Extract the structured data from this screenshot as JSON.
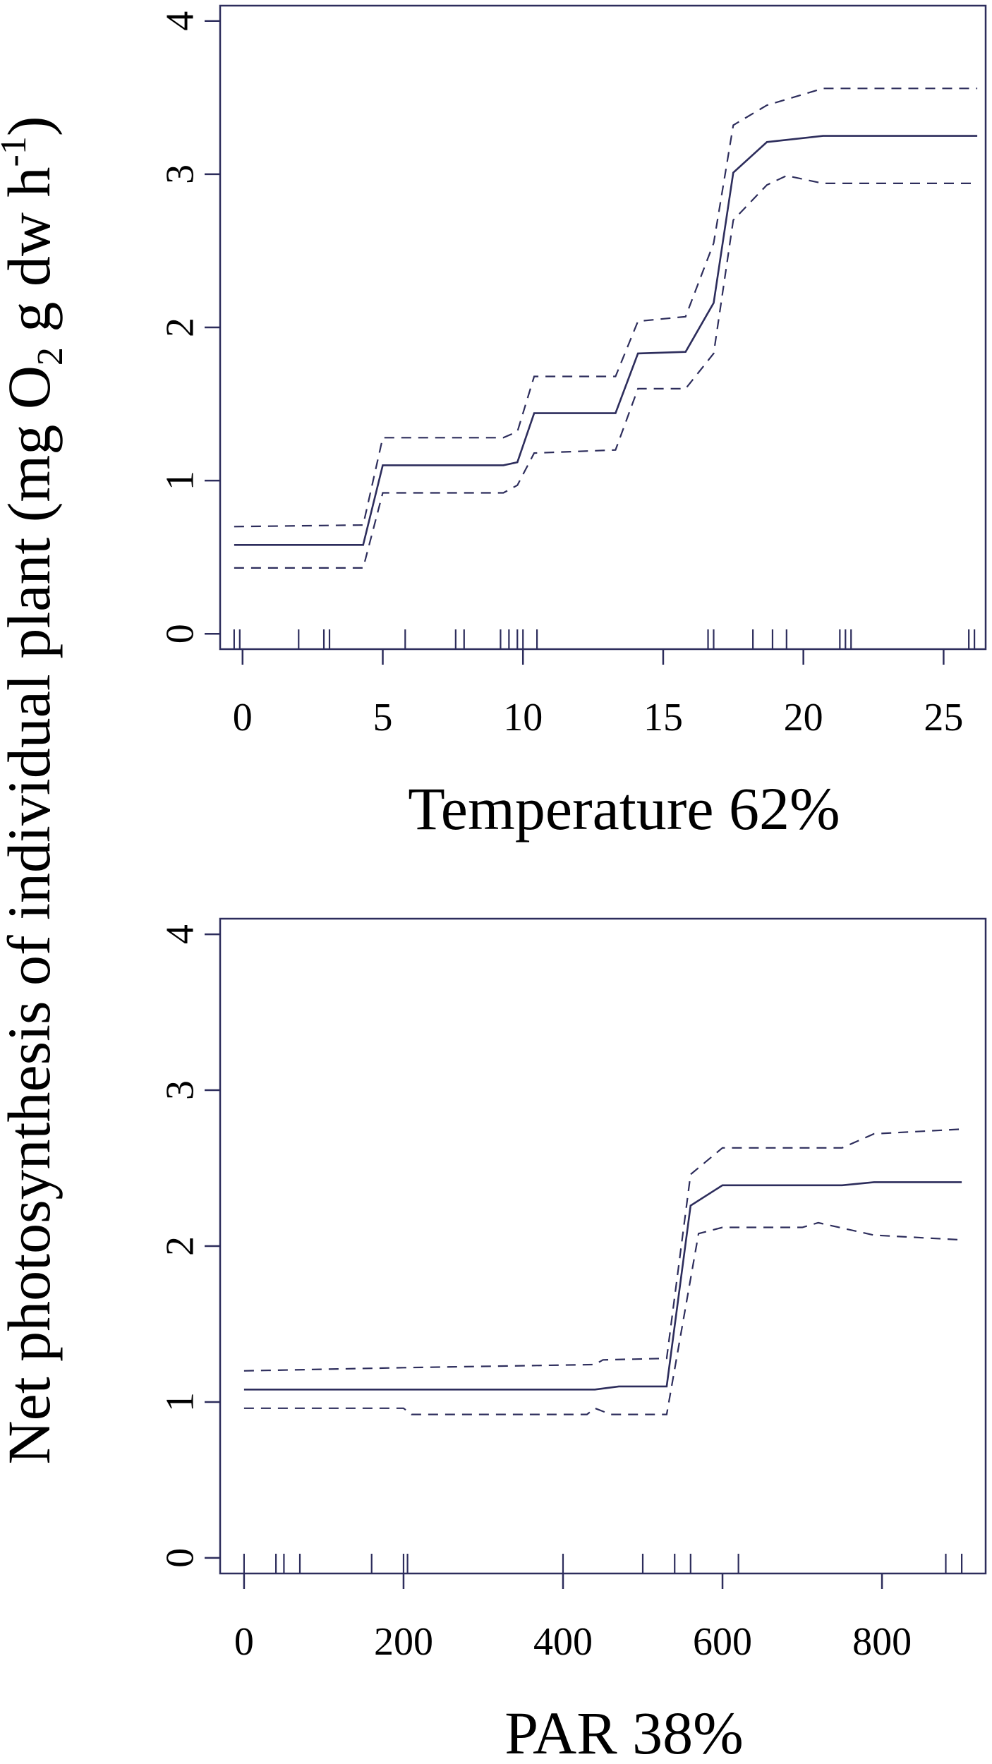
{
  "figure": {
    "shared_ylabel": {
      "prefix": "Net photosynthesis of individual plant (mg O",
      "sub": "2",
      "mid": " g dw h",
      "sup": "-1",
      "suffix": ")"
    }
  },
  "chart_data": [
    {
      "type": "line",
      "title": "",
      "xlabel": "Temperature 62%",
      "ylabel": "",
      "xlim": [
        -0.8,
        26.5
      ],
      "ylim": [
        -0.1,
        4.1
      ],
      "x_ticks": [
        0,
        5,
        10,
        15,
        20,
        25
      ],
      "y_ticks": [
        0,
        1,
        2,
        3,
        4
      ],
      "grid": false,
      "series": [
        {
          "role": "fit",
          "style": "solid",
          "x": [
            -0.3,
            4.3,
            5.0,
            9.3,
            9.8,
            10.4,
            13.3,
            14.1,
            15.8,
            16.8,
            17.5,
            18.7,
            20.7,
            26.2
          ],
          "y": [
            0.58,
            0.58,
            1.1,
            1.1,
            1.12,
            1.44,
            1.44,
            1.83,
            1.84,
            2.16,
            3.01,
            3.21,
            3.25,
            3.25
          ]
        },
        {
          "role": "upper-bound",
          "style": "dashed",
          "x": [
            -0.3,
            4.3,
            5.0,
            9.3,
            9.8,
            10.4,
            13.3,
            14.1,
            15.8,
            16.8,
            17.5,
            18.7,
            20.7,
            26.2
          ],
          "y": [
            0.7,
            0.71,
            1.28,
            1.28,
            1.32,
            1.68,
            1.68,
            2.04,
            2.07,
            2.55,
            3.32,
            3.45,
            3.56,
            3.56
          ]
        },
        {
          "role": "lower-bound",
          "style": "dashed",
          "x": [
            -0.3,
            4.3,
            5.0,
            9.3,
            9.8,
            10.4,
            13.3,
            14.1,
            15.8,
            16.8,
            17.5,
            18.7,
            19.4,
            20.7,
            26.2
          ],
          "y": [
            0.43,
            0.43,
            0.92,
            0.92,
            0.97,
            1.18,
            1.2,
            1.6,
            1.6,
            1.83,
            2.7,
            2.93,
            2.99,
            2.94,
            2.94
          ]
        }
      ],
      "rug": [
        -0.3,
        -0.1,
        2.0,
        2.9,
        3.1,
        5.8,
        7.6,
        7.9,
        9.2,
        9.5,
        9.8,
        10.0,
        10.5,
        16.6,
        16.8,
        18.2,
        18.9,
        19.4,
        21.3,
        21.5,
        21.7,
        25.9,
        26.1
      ]
    },
    {
      "type": "line",
      "title": "",
      "xlabel": "PAR 38%",
      "ylabel": "",
      "xlim": [
        -30,
        930
      ],
      "ylim": [
        -0.1,
        4.1
      ],
      "x_ticks": [
        0,
        200,
        400,
        600,
        800
      ],
      "y_ticks": [
        0,
        1,
        2,
        3,
        4
      ],
      "grid": false,
      "series": [
        {
          "role": "fit",
          "style": "solid",
          "x": [
            0,
            440,
            470,
            530,
            560,
            600,
            750,
            790,
            900
          ],
          "y": [
            1.08,
            1.08,
            1.1,
            1.1,
            2.26,
            2.39,
            2.39,
            2.41,
            2.41
          ]
        },
        {
          "role": "upper-bound",
          "style": "dashed",
          "x": [
            0,
            200,
            440,
            450,
            530,
            560,
            600,
            750,
            790,
            900
          ],
          "y": [
            1.2,
            1.22,
            1.24,
            1.27,
            1.28,
            2.46,
            2.63,
            2.63,
            2.72,
            2.75
          ]
        },
        {
          "role": "lower-bound",
          "style": "dashed",
          "x": [
            0,
            200,
            210,
            430,
            440,
            460,
            530,
            570,
            600,
            700,
            720,
            790,
            900
          ],
          "y": [
            0.96,
            0.96,
            0.92,
            0.92,
            0.96,
            0.92,
            0.92,
            2.08,
            2.12,
            2.12,
            2.15,
            2.07,
            2.04
          ]
        }
      ],
      "rug": [
        0,
        40,
        50,
        70,
        160,
        200,
        205,
        400,
        500,
        540,
        560,
        620,
        880,
        900
      ]
    }
  ]
}
